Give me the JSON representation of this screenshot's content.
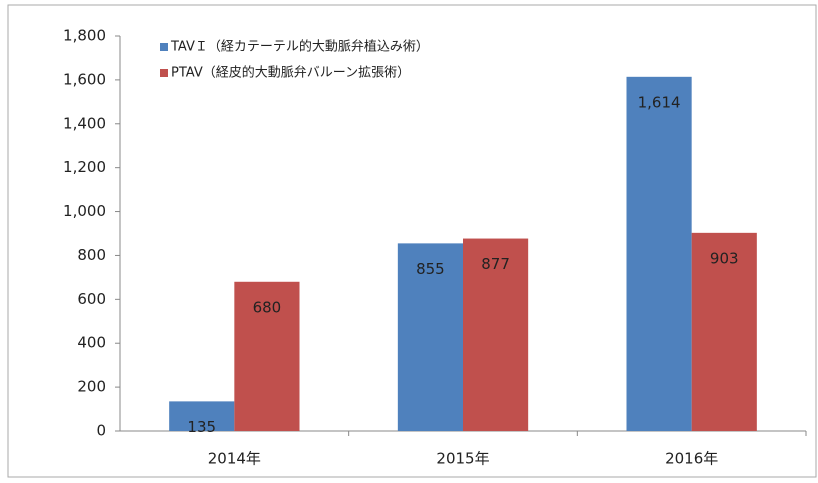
{
  "chart_data": {
    "type": "bar",
    "categories": [
      "2014年",
      "2015年",
      "2016年"
    ],
    "series": [
      {
        "name": "TAVＩ（経カテーテル的大動脈弁植込み術）",
        "color": "#4f81bd",
        "values": [
          135,
          855,
          1614
        ],
        "value_labels": [
          "135",
          "855",
          "1,614"
        ]
      },
      {
        "name": "PTAV（経皮的大動脈弁バルーン拡張術）",
        "color": "#c0504d",
        "values": [
          680,
          877,
          903
        ],
        "value_labels": [
          "680",
          "877",
          "903"
        ]
      }
    ],
    "ylim": [
      0,
      1800
    ],
    "yticks": [
      0,
      200,
      400,
      600,
      800,
      {
        "value": 1000,
        "label": "1,000"
      },
      {
        "value": 1200,
        "label": "1,200"
      },
      {
        "value": 1400,
        "label": "1,400"
      },
      {
        "value": 1600,
        "label": "1,600"
      },
      {
        "value": 1800,
        "label": "1,800"
      }
    ],
    "legend": "top-left"
  }
}
